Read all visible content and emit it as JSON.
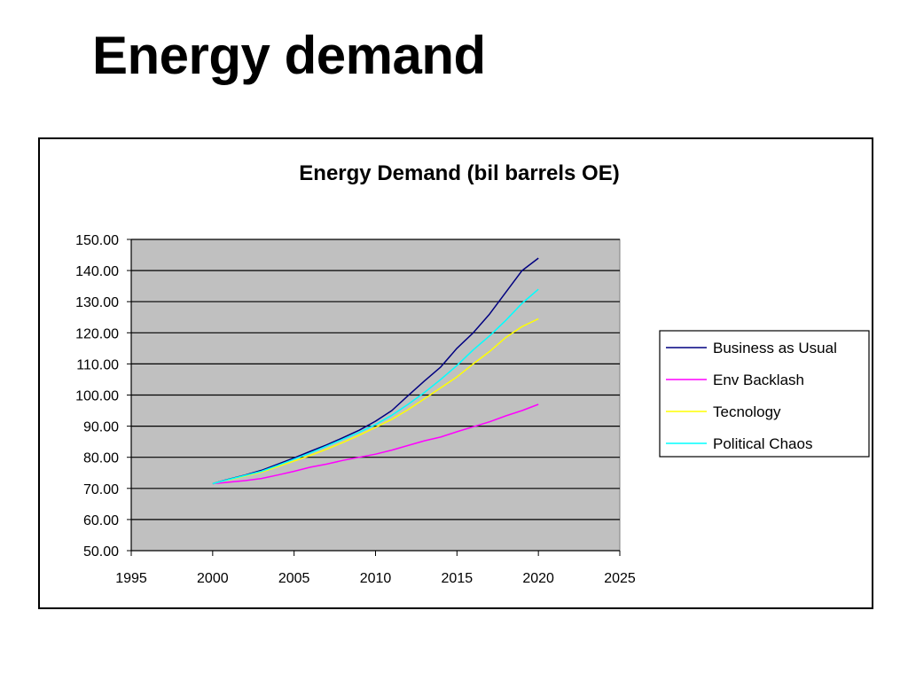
{
  "slide": {
    "title": "Energy demand"
  },
  "chart_data": {
    "type": "line",
    "title": "Energy Demand (bil barrels OE)",
    "xlabel": "",
    "ylabel": "",
    "xlim": [
      1995,
      2025
    ],
    "ylim": [
      50,
      150
    ],
    "xticks": [
      1995,
      2000,
      2005,
      2010,
      2015,
      2020,
      2025
    ],
    "xtick_labels": [
      "1995",
      "2000",
      "2005",
      "2010",
      "2015",
      "2020",
      "2025"
    ],
    "yticks": [
      50,
      60,
      70,
      80,
      90,
      100,
      110,
      120,
      130,
      140,
      150
    ],
    "ytick_labels": [
      "50.00",
      "60.00",
      "70.00",
      "80.00",
      "90.00",
      "100.00",
      "110.00",
      "120.00",
      "130.00",
      "140.00",
      "150.00"
    ],
    "grid": "horizontal",
    "plot_background": "#c0c0c0",
    "legend_position": "right",
    "x": [
      2000,
      2001,
      2002,
      2003,
      2004,
      2005,
      2006,
      2007,
      2008,
      2009,
      2010,
      2011,
      2012,
      2013,
      2014,
      2015,
      2016,
      2017,
      2018,
      2019,
      2020
    ],
    "series": [
      {
        "name": "Business as Usual",
        "color": "#000080",
        "values": [
          71.5,
          73.0,
          74.3,
          75.8,
          77.8,
          79.8,
          81.9,
          84.0,
          86.3,
          88.7,
          91.6,
          95.0,
          99.8,
          104.5,
          109.0,
          115.0,
          120.0,
          126.0,
          133.0,
          140.0,
          144.0
        ]
      },
      {
        "name": "Env Backlash",
        "color": "#ff00ff",
        "values": [
          71.5,
          72.0,
          72.5,
          73.2,
          74.3,
          75.5,
          76.8,
          77.8,
          79.0,
          80.0,
          81.0,
          82.3,
          83.8,
          85.3,
          86.5,
          88.2,
          89.8,
          91.4,
          93.3,
          95.0,
          97.0
        ]
      },
      {
        "name": "Tecnology",
        "color": "#ffff00",
        "values": [
          71.5,
          72.8,
          74.0,
          75.2,
          77.0,
          78.8,
          80.6,
          82.6,
          84.8,
          87.1,
          89.6,
          92.2,
          95.3,
          98.8,
          102.3,
          105.8,
          110.0,
          114.0,
          118.5,
          122.0,
          124.5
        ]
      },
      {
        "name": "Political Chaos",
        "color": "#00ffff",
        "values": [
          71.5,
          72.9,
          74.2,
          75.5,
          77.4,
          79.4,
          81.4,
          83.6,
          85.8,
          88.0,
          90.5,
          93.5,
          97.0,
          100.8,
          105.0,
          109.5,
          114.5,
          119.0,
          124.0,
          129.5,
          134.0
        ]
      }
    ]
  }
}
